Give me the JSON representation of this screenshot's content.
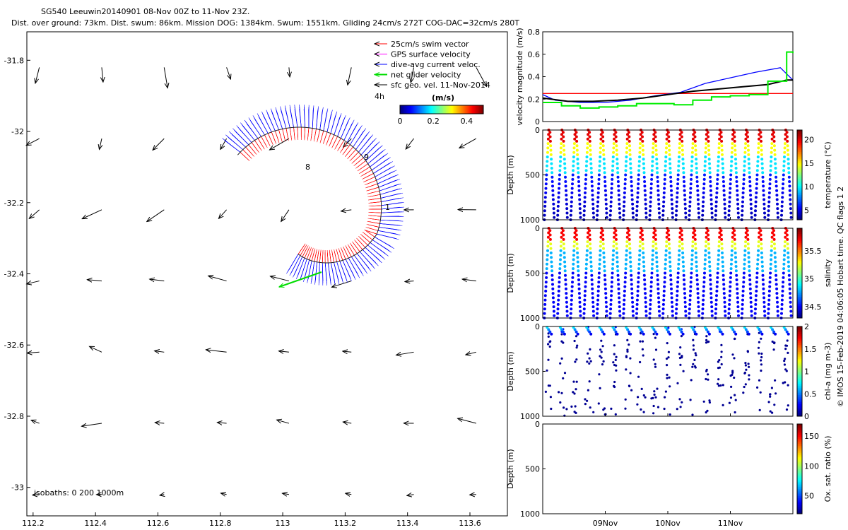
{
  "header": {
    "line1": "SG540 Leeuwin20140901 08-Nov 00Z to 11-Nov 23Z.",
    "line2": "Dist. over ground: 73km. Dist. swum: 86km. Mission DOG: 1384km. Swum: 1551km. Gliding 24cm/s 272T COG-DAC=32cm/s 280T"
  },
  "map": {
    "x_ticks": [
      "112.2",
      "112.4",
      "112.6",
      "112.8",
      "113",
      "113.2",
      "113.4",
      "113.6"
    ],
    "y_ticks": [
      "-31.8",
      "-32",
      "-32.2",
      "-32.4",
      "-32.6",
      "-32.8",
      "-33"
    ],
    "xlim": [
      112.18,
      113.72
    ],
    "ylim": [
      -33.08,
      -31.72
    ],
    "isobaths_label": "isobaths: 0   200  1000m",
    "legend": [
      {
        "label": "25cm/s swim vector",
        "color": "#ff0000"
      },
      {
        "label": "GPS surface velocity",
        "color": "#ff00ff"
      },
      {
        "label": "dive-avg current veloc.",
        "color": "#0000ff"
      },
      {
        "label": "net glider velocity",
        "color": "#00dd00"
      },
      {
        "label": "sfc geo. vel. 11-Nov-2014",
        "color": "#000000"
      }
    ],
    "legend_note": "4h",
    "colorbar_title": "(m/s)",
    "colorbar_ticks": [
      "0",
      "0.2",
      "0.4"
    ],
    "colorbar_range": [
      0,
      0.5
    ],
    "track_labels": [
      "8",
      "9",
      "1"
    ]
  },
  "chart_data": [
    {
      "type": "line",
      "title": "",
      "ylabel": "velocity magnitude (m/s)",
      "ylim": [
        0,
        0.8
      ],
      "yticks": [
        "0",
        "0.2",
        "0.4",
        "0.6",
        "0.8"
      ],
      "x_days": [
        8,
        12
      ],
      "series": [
        {
          "color": "#ff0000",
          "x": [
            8,
            12
          ],
          "y": [
            0.25,
            0.25
          ]
        },
        {
          "color": "#0000ff",
          "x": [
            8.0,
            8.2,
            8.6,
            9.0,
            9.4,
            9.8,
            10.2,
            10.6,
            11.0,
            11.4,
            11.8,
            12.0
          ],
          "y": [
            0.24,
            0.19,
            0.17,
            0.17,
            0.19,
            0.23,
            0.26,
            0.34,
            0.39,
            0.44,
            0.48,
            0.37
          ]
        },
        {
          "color": "#000000",
          "x": [
            8.0,
            8.4,
            8.8,
            9.2,
            9.6,
            10.0,
            10.4,
            10.8,
            11.2,
            11.6,
            11.9,
            12.0
          ],
          "y": [
            0.21,
            0.18,
            0.18,
            0.19,
            0.21,
            0.24,
            0.27,
            0.29,
            0.31,
            0.33,
            0.37,
            0.37
          ]
        },
        {
          "color": "#00ee00",
          "x": [
            8.0,
            8.3,
            8.6,
            8.9,
            9.2,
            9.5,
            9.8,
            10.1,
            10.4,
            10.7,
            11.0,
            11.3,
            11.6,
            11.9,
            12.0
          ],
          "y": [
            0.17,
            0.14,
            0.12,
            0.13,
            0.14,
            0.16,
            0.16,
            0.15,
            0.19,
            0.22,
            0.23,
            0.24,
            0.36,
            0.62,
            0.61
          ]
        }
      ]
    },
    {
      "type": "scatter",
      "ylabel": "Depth (m)",
      "colorbar_label": "temperature (°C)",
      "colorbar_ticks": [
        "5",
        "10",
        "15",
        "20"
      ],
      "crange": [
        3,
        22
      ],
      "yticks": [
        "0",
        "500",
        "1000"
      ],
      "dives": 19
    },
    {
      "type": "scatter",
      "ylabel": "Depth (m)",
      "colorbar_label": "salinity",
      "colorbar_ticks": [
        "34.5",
        "35",
        "35.5"
      ],
      "crange": [
        34.3,
        35.9
      ],
      "yticks": [
        "0",
        "500",
        "1000"
      ],
      "dives": 19
    },
    {
      "type": "scatter",
      "ylabel": "Depth (m)",
      "colorbar_label": "chl-a (mg m-3)",
      "colorbar_ticks": [
        "0",
        "0.5",
        "1",
        "1.5",
        "2"
      ],
      "crange": [
        0,
        2
      ],
      "yticks": [
        "0",
        "500",
        "1000"
      ],
      "dives": 19
    },
    {
      "type": "scatter",
      "ylabel": "Depth (m)",
      "colorbar_label": "Ox. sat. ratio (%)",
      "colorbar_ticks": [
        "50",
        "100",
        "150"
      ],
      "crange": [
        20,
        170
      ],
      "yticks": [
        "0",
        "500",
        "1000"
      ],
      "dives": 0
    }
  ],
  "time_ticks": [
    "09Nov",
    "10Nov",
    "11Nov"
  ],
  "credit": "© IMOS 15-Feb-2019 04:06:05 Hobart time. QC flags 1  2"
}
